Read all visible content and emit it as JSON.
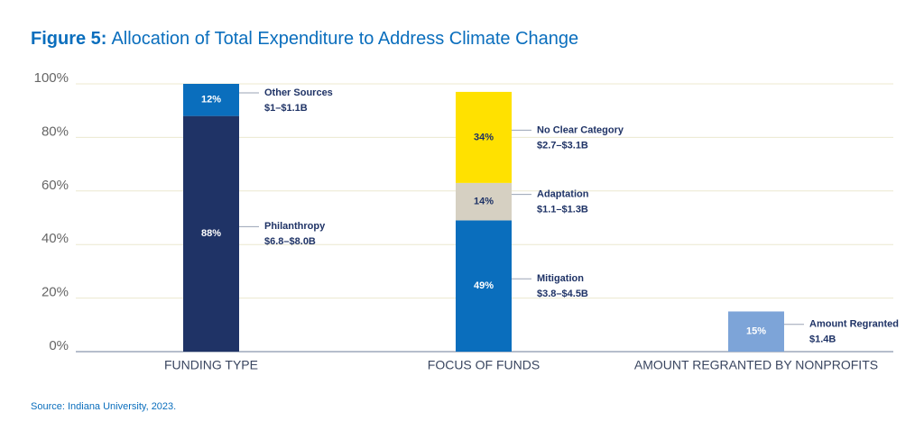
{
  "chart_data": {
    "type": "stacked-bar",
    "title_label": "Figure 5:",
    "title": "Allocation of Total Expenditure to Address Climate Change",
    "source": "Source: Indiana University, 2023.",
    "ylim": [
      0,
      100
    ],
    "yticks": [
      {
        "value": 0,
        "label": "0%"
      },
      {
        "value": 20,
        "label": "20%"
      },
      {
        "value": 40,
        "label": "40%"
      },
      {
        "value": 60,
        "label": "60%"
      },
      {
        "value": 80,
        "label": "80%"
      },
      {
        "value": 100,
        "label": "100%"
      }
    ],
    "grid": true,
    "bars": [
      {
        "category": "FUNDING TYPE",
        "segments": [
          {
            "name": "Philanthropy",
            "amount": "$6.8–$8.0B",
            "value": 88,
            "value_label": "88%",
            "color": "#1f3366"
          },
          {
            "name": "Other Sources",
            "amount": "$1–$1.1B",
            "value": 12,
            "value_label": "12%",
            "color": "#0a6ebd"
          }
        ]
      },
      {
        "category": "FOCUS OF FUNDS",
        "segments": [
          {
            "name": "Mitigation",
            "amount": "$3.8–$4.5B",
            "value": 49,
            "value_label": "49%",
            "color": "#0a6ebd"
          },
          {
            "name": "Adaptation",
            "amount": "$1.1–$1.3B",
            "value": 14,
            "value_label": "14%",
            "color": "#d6d0c2"
          },
          {
            "name": "No Clear Category",
            "amount": "$2.7–$3.1B",
            "value": 34,
            "value_label": "34%",
            "color": "#ffe100"
          }
        ]
      },
      {
        "category": "AMOUNT REGRANTED BY NONPROFITS",
        "segments": [
          {
            "name": "Amount Regranted",
            "amount": "$1.4B",
            "value": 15,
            "value_label": "15%",
            "color": "#7da4d8"
          }
        ]
      }
    ]
  }
}
